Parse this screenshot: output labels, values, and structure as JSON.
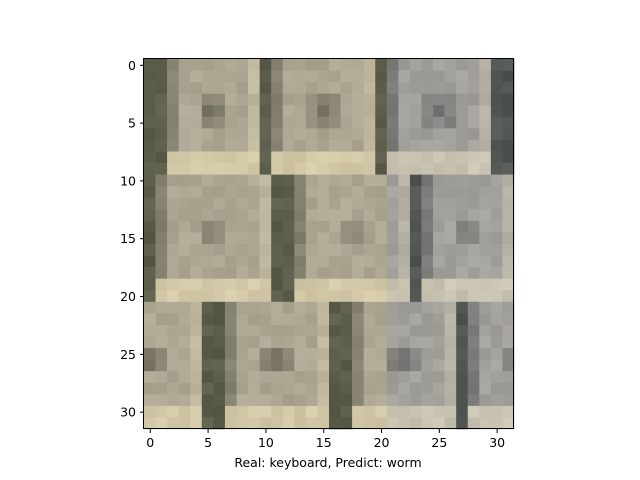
{
  "caption": "Real: keyboard, Predict: worm",
  "axes": {
    "x_ticks": [
      0,
      5,
      10,
      15,
      20,
      25,
      30
    ],
    "y_ticks": [
      0,
      5,
      10,
      15,
      20,
      25,
      30
    ],
    "x_range": [
      -0.5,
      31.5
    ],
    "y_range": [
      -0.5,
      31.5
    ],
    "y_inverted": true
  },
  "image": {
    "resolution": [
      32,
      32
    ],
    "subject": "keyboard keys close-up"
  },
  "colors": {
    "background": "#ffffff",
    "frame": "#000000",
    "key_face": "#a8a496",
    "key_light": "#cfc7ad",
    "key_shadow": "#585a4f",
    "key_center": "#6e6c62"
  }
}
